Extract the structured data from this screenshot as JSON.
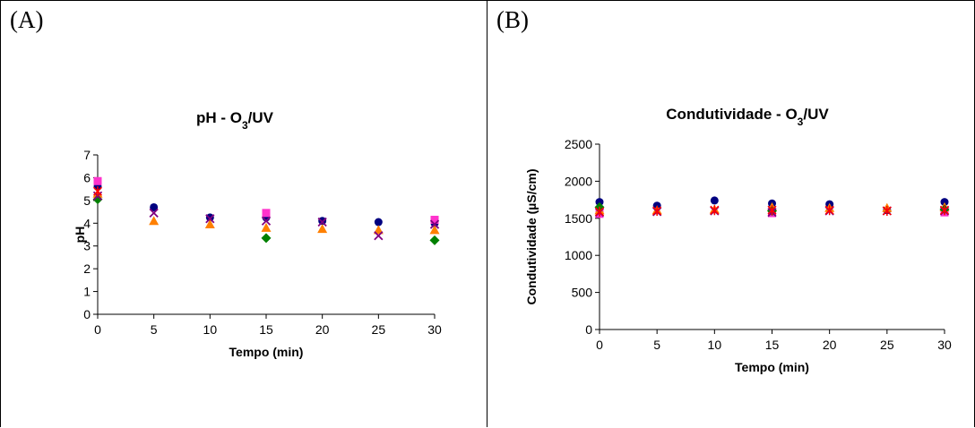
{
  "panels": [
    {
      "label": "(A)"
    },
    {
      "label": "(B)"
    }
  ],
  "chart_data": [
    {
      "type": "scatter",
      "title_main": "pH - O",
      "title_sub": "3",
      "title_tail": "/UV",
      "xlabel": "Tempo (min)",
      "ylabel": "pH",
      "xlim": [
        0,
        30
      ],
      "ylim": [
        0,
        7
      ],
      "xticks": [
        0,
        5,
        10,
        15,
        20,
        25,
        30
      ],
      "yticks": [
        0,
        1,
        2,
        3,
        4,
        5,
        6,
        7
      ],
      "grid": false,
      "series": [
        {
          "marker": "circle",
          "color": "#000080",
          "points": [
            [
              0,
              5.6
            ],
            [
              5,
              4.7
            ],
            [
              10,
              4.25
            ],
            [
              15,
              4.25
            ],
            [
              20,
              4.1
            ],
            [
              25,
              4.05
            ],
            [
              30,
              4.0
            ]
          ]
        },
        {
          "marker": "square",
          "color": "#ff33cc",
          "points": [
            [
              0,
              5.85
            ],
            [
              15,
              4.45
            ],
            [
              30,
              4.15
            ]
          ]
        },
        {
          "marker": "triangle",
          "color": "#ff8000",
          "points": [
            [
              0,
              5.3
            ],
            [
              5,
              4.1
            ],
            [
              10,
              3.95
            ],
            [
              15,
              3.8
            ],
            [
              20,
              3.75
            ],
            [
              25,
              3.7
            ],
            [
              30,
              3.7
            ]
          ]
        },
        {
          "marker": "diamond",
          "color": "#008000",
          "points": [
            [
              0,
              5.05
            ],
            [
              15,
              3.35
            ],
            [
              30,
              3.25
            ]
          ]
        },
        {
          "marker": "x",
          "color": "#800080",
          "points": [
            [
              0,
              5.2
            ],
            [
              5,
              4.45
            ],
            [
              10,
              4.2
            ],
            [
              15,
              4.1
            ],
            [
              20,
              4.05
            ],
            [
              25,
              3.45
            ],
            [
              30,
              3.95
            ]
          ]
        },
        {
          "marker": "star",
          "color": "#ff0000",
          "points": [
            [
              0,
              5.4
            ]
          ]
        }
      ]
    },
    {
      "type": "scatter",
      "title_main": "Condutividade - O",
      "title_sub": "3",
      "title_tail": "/UV",
      "xlabel": "Tempo (min)",
      "ylabel": "Condutividade (µS/cm)",
      "xlim": [
        0,
        30
      ],
      "ylim": [
        0,
        2500
      ],
      "xticks": [
        0,
        5,
        10,
        15,
        20,
        25,
        30
      ],
      "yticks": [
        0,
        500,
        1000,
        1500,
        2000,
        2500
      ],
      "grid": false,
      "series": [
        {
          "marker": "circle",
          "color": "#000080",
          "points": [
            [
              0,
              1720
            ],
            [
              5,
              1670
            ],
            [
              10,
              1740
            ],
            [
              15,
              1700
            ],
            [
              20,
              1690
            ],
            [
              25,
              1610
            ],
            [
              30,
              1720
            ]
          ]
        },
        {
          "marker": "square",
          "color": "#ff33cc",
          "points": [
            [
              0,
              1560
            ],
            [
              15,
              1570
            ],
            [
              30,
              1580
            ]
          ]
        },
        {
          "marker": "triangle",
          "color": "#ff8000",
          "points": [
            [
              0,
              1610
            ],
            [
              5,
              1610
            ],
            [
              10,
              1620
            ],
            [
              15,
              1650
            ],
            [
              20,
              1640
            ],
            [
              25,
              1640
            ],
            [
              30,
              1650
            ]
          ]
        },
        {
          "marker": "diamond",
          "color": "#008000",
          "points": [
            [
              0,
              1650
            ],
            [
              15,
              1600
            ],
            [
              30,
              1620
            ]
          ]
        },
        {
          "marker": "x",
          "color": "#800080",
          "points": [
            [
              0,
              1580
            ],
            [
              5,
              1590
            ],
            [
              10,
              1600
            ],
            [
              15,
              1580
            ],
            [
              20,
              1600
            ],
            [
              25,
              1600
            ],
            [
              30,
              1600
            ]
          ]
        },
        {
          "marker": "star",
          "color": "#ff0000",
          "points": [
            [
              0,
              1590
            ],
            [
              5,
              1600
            ],
            [
              10,
              1610
            ],
            [
              15,
              1610
            ],
            [
              20,
              1610
            ],
            [
              25,
              1600
            ],
            [
              30,
              1610
            ]
          ]
        }
      ]
    }
  ]
}
